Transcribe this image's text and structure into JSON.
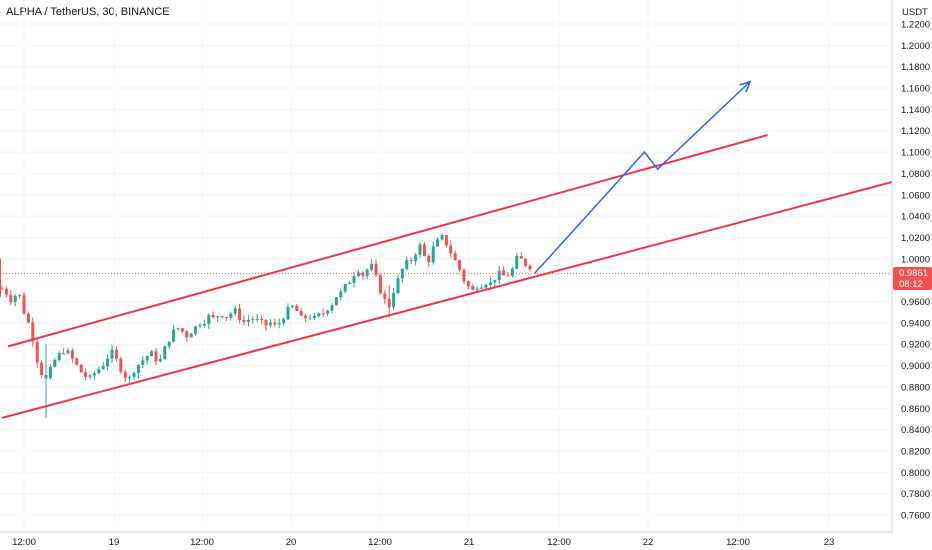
{
  "header": {
    "symbol": "ALPHA / TetherUS",
    "interval": "30",
    "exchange": "BINANCE",
    "title": "ALPHA / TetherUS, 30, BINANCE"
  },
  "price_axis": {
    "currency": "USDT",
    "ticks": [
      "1.2200",
      "1.2000",
      "1.1800",
      "1.1600",
      "1.1400",
      "1.1200",
      "1.1000",
      "1.0800",
      "1.0600",
      "1.0400",
      "1.0200",
      "1.0000",
      "0.9600",
      "0.9400",
      "0.9200",
      "0.9000",
      "0.8800",
      "0.8600",
      "0.8400",
      "0.8200",
      "0.8000",
      "0.7800",
      "0.7600"
    ]
  },
  "time_axis": {
    "ticks": [
      "12:00",
      "19",
      "12:00",
      "20",
      "12:00",
      "21",
      "12:00",
      "22",
      "12:00",
      "23"
    ]
  },
  "last_price": {
    "price": "0.9861",
    "countdown": "08:12",
    "color": "#ef5350"
  },
  "colors": {
    "up": "#26a69a",
    "down": "#ef5350",
    "channel": "#f23645",
    "projection": "#2962ff",
    "grid": "#f0f3fa"
  },
  "chart_data": {
    "type": "candlestick",
    "title": "ALPHA / TetherUS, 30, BINANCE",
    "ylabel": "USDT",
    "ylim": [
      0.75,
      1.23
    ],
    "x_ticks": [
      "12:00",
      "19",
      "12:00",
      "20",
      "12:00",
      "21",
      "12:00",
      "22",
      "12:00",
      "23"
    ],
    "last_price": 0.9861,
    "close_path": [
      [
        0.0,
        0.972
      ],
      [
        0.5,
        0.968
      ],
      [
        1,
        0.962
      ],
      [
        1.5,
        0.966
      ],
      [
        2,
        0.965
      ],
      [
        2.5,
        0.95
      ],
      [
        3,
        0.94
      ],
      [
        3.5,
        0.925
      ],
      [
        4,
        0.905
      ],
      [
        4.5,
        0.893
      ],
      [
        5,
        0.887
      ],
      [
        5.5,
        0.896
      ],
      [
        6,
        0.905
      ],
      [
        6.5,
        0.91
      ],
      [
        7,
        0.914
      ],
      [
        7.5,
        0.912
      ],
      [
        8,
        0.906
      ],
      [
        8.5,
        0.9
      ],
      [
        9,
        0.894
      ],
      [
        9.5,
        0.89
      ],
      [
        10,
        0.888
      ],
      [
        10.5,
        0.893
      ],
      [
        11,
        0.897
      ],
      [
        11.5,
        0.901
      ],
      [
        12,
        0.908
      ],
      [
        12.5,
        0.912
      ],
      [
        13,
        0.905
      ],
      [
        13.5,
        0.897
      ],
      [
        14,
        0.89
      ],
      [
        14.5,
        0.888
      ],
      [
        15,
        0.896
      ],
      [
        15.5,
        0.901
      ],
      [
        16,
        0.905
      ],
      [
        16.5,
        0.909
      ],
      [
        17,
        0.911
      ],
      [
        17.5,
        0.906
      ],
      [
        18,
        0.905
      ],
      [
        18.5,
        0.916
      ],
      [
        19,
        0.925
      ],
      [
        19.5,
        0.932
      ],
      [
        20,
        0.935
      ],
      [
        20.5,
        0.932
      ],
      [
        21,
        0.928
      ],
      [
        21.5,
        0.932
      ],
      [
        22,
        0.936
      ],
      [
        22.5,
        0.94
      ],
      [
        23,
        0.942
      ],
      [
        23.5,
        0.946
      ],
      [
        24,
        0.944
      ],
      [
        24.5,
        0.947
      ],
      [
        25,
        0.948
      ],
      [
        25.5,
        0.946
      ],
      [
        26,
        0.949
      ],
      [
        26.5,
        0.951
      ],
      [
        27,
        0.945
      ],
      [
        27.5,
        0.941
      ],
      [
        28,
        0.943
      ],
      [
        28.5,
        0.944
      ],
      [
        29,
        0.942
      ],
      [
        29.5,
        0.94
      ],
      [
        30,
        0.938
      ],
      [
        30.5,
        0.94
      ],
      [
        31,
        0.937
      ],
      [
        31.5,
        0.94
      ],
      [
        32,
        0.946
      ],
      [
        32.5,
        0.952
      ],
      [
        33,
        0.955
      ],
      [
        33.5,
        0.951
      ],
      [
        34,
        0.944
      ],
      [
        34.5,
        0.945
      ],
      [
        35,
        0.946
      ],
      [
        35.5,
        0.944
      ],
      [
        36,
        0.947
      ],
      [
        36.5,
        0.949
      ],
      [
        37,
        0.954
      ],
      [
        37.5,
        0.958
      ],
      [
        38,
        0.965
      ],
      [
        38.5,
        0.968
      ],
      [
        39,
        0.974
      ],
      [
        39.5,
        0.979
      ],
      [
        40,
        0.986
      ],
      [
        40.5,
        0.99
      ],
      [
        41,
        0.985
      ],
      [
        41.5,
        0.99
      ],
      [
        42,
        0.993
      ],
      [
        42.5,
        0.982
      ],
      [
        43,
        0.97
      ],
      [
        43.5,
        0.961
      ],
      [
        44,
        0.956
      ],
      [
        44.5,
        0.97
      ],
      [
        45,
        0.98
      ],
      [
        45.5,
        0.99
      ],
      [
        46,
        0.996
      ],
      [
        46.5,
        0.999
      ],
      [
        47,
        1.006
      ],
      [
        47.5,
        1.012
      ],
      [
        48,
        1.002
      ],
      [
        48.5,
        0.999
      ],
      [
        49,
        1.01
      ],
      [
        49.5,
        1.016
      ],
      [
        50,
        1.02
      ],
      [
        50.5,
        1.014
      ],
      [
        51,
        1.006
      ],
      [
        51.5,
        0.998
      ],
      [
        52,
        0.99
      ],
      [
        52.5,
        0.98
      ],
      [
        53,
        0.974
      ],
      [
        53.5,
        0.97
      ],
      [
        54,
        0.975
      ],
      [
        54.5,
        0.976
      ],
      [
        55,
        0.978
      ],
      [
        55.5,
        0.977
      ],
      [
        56,
        0.982
      ],
      [
        56.5,
        0.986
      ],
      [
        57,
        0.984
      ],
      [
        57.5,
        0.985
      ],
      [
        58,
        0.99
      ],
      [
        58.5,
        1.0
      ],
      [
        59,
        0.999
      ],
      [
        59.5,
        0.995
      ],
      [
        60,
        0.993
      ],
      [
        60.5,
        0.984
      ]
    ],
    "drawings": {
      "channel_upper": [
        [
          0.918,
          0.7
        ],
        [
          1.116,
          87
        ]
      ],
      "channel_lower": [
        [
          0.851,
          0.0
        ],
        [
          1.076,
          103
        ]
      ],
      "projection": [
        [
          0.9861,
          60.5
        ],
        [
          1.1,
          73.0
        ],
        [
          1.084,
          74.5
        ],
        [
          1.166,
          85.0
        ]
      ]
    }
  }
}
